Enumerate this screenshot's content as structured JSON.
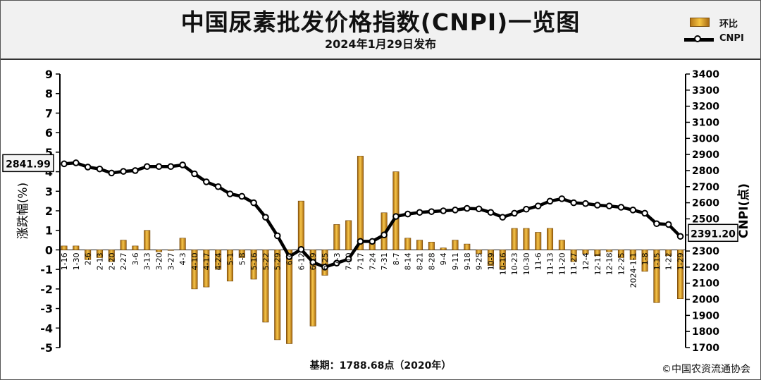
{
  "header": {
    "title": "中国尿素批发价格指数(CNPI)一览图",
    "subtitle": "2024年1月29日发布"
  },
  "legend": {
    "bar_label": "环比",
    "line_label": "CNPI"
  },
  "footer": {
    "base_text": "基期：1788.68点（2020年）",
    "copyright": "©中国农资流通协会"
  },
  "callouts": {
    "first": "2841.99",
    "last": "2391.20"
  },
  "colors": {
    "bar_dark": "#a7690f",
    "bar_light": "#f7c64a",
    "line": "#000000",
    "header_bg": "#f1f1f1"
  },
  "chart_data": {
    "type": "bar",
    "ylabel_left": "涨跌幅(%)",
    "ylabel_right": "CNPI(点)",
    "ylim_left": [
      -5,
      9
    ],
    "ylim_right": [
      1700,
      3400
    ],
    "y_ticks_left": [
      "9",
      "8",
      "7",
      "6",
      "5",
      "4",
      "3",
      "2",
      "1",
      "0",
      "-1",
      "-2",
      "-3",
      "-4",
      "-5"
    ],
    "y_ticks_right": [
      "3400",
      "3300",
      "3200",
      "3100",
      "3000",
      "2900",
      "2800",
      "2700",
      "2600",
      "2500",
      "2400",
      "2300",
      "2200",
      "2100",
      "2000",
      "1900",
      "1800",
      "1700"
    ],
    "categories": [
      "1-16",
      "1-30",
      "2-6",
      "2-13",
      "2-20",
      "2-27",
      "3-6",
      "3-13",
      "3-20",
      "3-27",
      "4-3",
      "4-10",
      "4-17",
      "4-24",
      "5-1",
      "5-8",
      "5-16",
      "5-22",
      "5-29",
      "6-4",
      "6-12",
      "6-19",
      "6-25",
      "7-3",
      "7-10",
      "7-17",
      "7-24",
      "7-31",
      "8-7",
      "8-14",
      "8-21",
      "8-28",
      "9-4",
      "9-11",
      "9-18",
      "9-25",
      "10-9",
      "10-16",
      "10-23",
      "10-30",
      "11-6",
      "11-13",
      "11-20",
      "11-27",
      "12-4",
      "12-11",
      "12-18",
      "12-25",
      "2024-1-1",
      "1-8",
      "1-15",
      "1-22",
      "1-29"
    ],
    "series": [
      {
        "name": "环比",
        "type": "bar",
        "axis": "left",
        "values": [
          0.2,
          0.2,
          -0.5,
          -0.4,
          -0.6,
          0.5,
          0.2,
          1.0,
          -0.1,
          0.0,
          0.6,
          -2.0,
          -1.9,
          -1.0,
          -1.6,
          -0.4,
          -1.5,
          -3.7,
          -4.6,
          -4.8,
          2.5,
          -3.9,
          -1.3,
          1.3,
          1.5,
          4.8,
          0.4,
          1.9,
          4.0,
          0.6,
          0.5,
          0.4,
          0.1,
          0.5,
          0.3,
          -0.2,
          -0.8,
          -1.0,
          1.1,
          1.1,
          0.9,
          1.1,
          0.5,
          -0.6,
          -0.2,
          -0.3,
          -0.1,
          -0.4,
          -0.5,
          -1.1,
          -2.7,
          -0.3,
          -2.5
        ]
      },
      {
        "name": "CNPI",
        "type": "line",
        "axis": "right",
        "values": [
          2842,
          2848,
          2822,
          2810,
          2785,
          2795,
          2800,
          2825,
          2825,
          2825,
          2835,
          2780,
          2730,
          2700,
          2655,
          2640,
          2600,
          2510,
          2395,
          2265,
          2310,
          2230,
          2200,
          2225,
          2250,
          2360,
          2360,
          2400,
          2515,
          2530,
          2540,
          2545,
          2550,
          2555,
          2565,
          2562,
          2540,
          2510,
          2535,
          2560,
          2580,
          2610,
          2625,
          2600,
          2595,
          2585,
          2580,
          2572,
          2555,
          2535,
          2470,
          2465,
          2391
        ]
      }
    ]
  }
}
